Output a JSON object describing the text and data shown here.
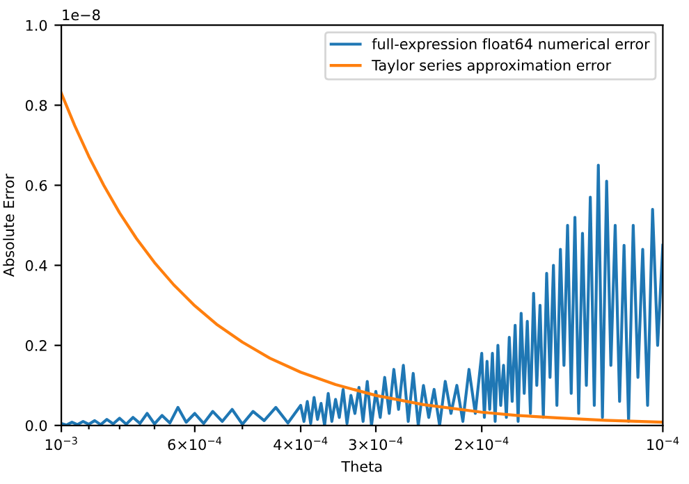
{
  "chart_data": {
    "type": "line",
    "xlabel": "Theta",
    "ylabel": "Absolute Error",
    "log": "x",
    "xlim": [
      0.001,
      0.0001
    ],
    "ylim": [
      0,
      1
    ],
    "xticks": [
      {
        "value": 0.001,
        "label": "10$^{−3}$"
      },
      {
        "value": 0.0009,
        "label": null
      },
      {
        "value": 0.0008,
        "label": null
      },
      {
        "value": 0.0007,
        "label": null
      },
      {
        "value": 0.0006,
        "label": "6×10$^{−4}$"
      },
      {
        "value": 0.0005,
        "label": null
      },
      {
        "value": 0.0004,
        "label": "4×10$^{−4}$"
      },
      {
        "value": 0.0003,
        "label": "3×10$^{−4}$"
      },
      {
        "value": 0.0002,
        "label": "2×10$^{−4}$"
      },
      {
        "value": 0.0001,
        "label": "10$^{−4}$"
      }
    ],
    "yticks": [
      {
        "value": 0,
        "label": "0.0"
      },
      {
        "value": 0.2,
        "label": "0.2"
      },
      {
        "value": 0.4,
        "label": "0.4"
      },
      {
        "value": 0.6,
        "label": "0.6"
      },
      {
        "value": 0.8,
        "label": "0.8"
      },
      {
        "value": 1,
        "label": "1.0"
      }
    ],
    "annotations": [
      "1e−8"
    ],
    "legend": "top right",
    "grid": false,
    "series": [
      {
        "name": "full-expression float64 numerical error",
        "color": "#1f77b4",
        "x": [
          0.001,
          0.00098,
          0.00096,
          0.00094,
          0.00092,
          0.0009,
          0.00088,
          0.00086,
          0.00084,
          0.00082,
          0.0008,
          0.00078,
          0.00076,
          0.00074,
          0.00072,
          0.0007,
          0.00068,
          0.00066,
          0.00064,
          0.00062,
          0.0006,
          0.00058,
          0.00056,
          0.00054,
          0.00052,
          0.0005,
          0.00048,
          0.00046,
          0.00044,
          0.00042,
          0.0004,
          0.000395,
          0.00039,
          0.000385,
          0.00038,
          0.000375,
          0.00037,
          0.000365,
          0.00036,
          0.000355,
          0.00035,
          0.000345,
          0.00034,
          0.000335,
          0.00033,
          0.000325,
          0.00032,
          0.000315,
          0.00031,
          0.000305,
          0.0003,
          0.000295,
          0.00029,
          0.000285,
          0.00028,
          0.000275,
          0.00027,
          0.000265,
          0.00026,
          0.000255,
          0.00025,
          0.000245,
          0.00024,
          0.000235,
          0.00023,
          0.000225,
          0.00022,
          0.000215,
          0.00021,
          0.000205,
          0.0002,
          0.000198,
          0.000196,
          0.000194,
          0.000192,
          0.00019,
          0.000188,
          0.000186,
          0.000184,
          0.000182,
          0.00018,
          0.000178,
          0.000176,
          0.000174,
          0.000172,
          0.00017,
          0.000168,
          0.000166,
          0.000164,
          0.000162,
          0.00016,
          0.000158,
          0.000156,
          0.000154,
          0.000152,
          0.00015,
          0.000148,
          0.000146,
          0.000144,
          0.000142,
          0.00014,
          0.000138,
          0.000136,
          0.000134,
          0.000132,
          0.00013,
          0.000128,
          0.000126,
          0.000124,
          0.000122,
          0.00012,
          0.000118,
          0.000116,
          0.000114,
          0.000112,
          0.00011,
          0.000108,
          0.000106,
          0.000104,
          0.000102,
          0.0001
        ],
        "values": [
          0.005,
          0.001,
          0.008,
          0.002,
          0.01,
          0.003,
          0.012,
          0.002,
          0.015,
          0.004,
          0.018,
          0.003,
          0.02,
          0.005,
          0.03,
          0.004,
          0.025,
          0.006,
          0.045,
          0.008,
          0.03,
          0.005,
          0.035,
          0.01,
          0.04,
          0.003,
          0.035,
          0.012,
          0.045,
          0.006,
          0.05,
          0.01,
          0.06,
          0.005,
          0.07,
          0.015,
          0.055,
          0.0,
          0.08,
          0.01,
          0.065,
          0.02,
          0.09,
          0.005,
          0.075,
          0.03,
          0.095,
          0.01,
          0.11,
          0.0,
          0.085,
          0.02,
          0.12,
          0.03,
          0.14,
          0.04,
          0.15,
          0.01,
          0.13,
          0.0,
          0.1,
          0.02,
          0.09,
          0.0,
          0.11,
          0.03,
          0.1,
          0.01,
          0.14,
          0.03,
          0.18,
          0.02,
          0.16,
          0.04,
          0.18,
          0.01,
          0.2,
          0.05,
          0.15,
          0.02,
          0.22,
          0.06,
          0.25,
          0.01,
          0.28,
          0.08,
          0.26,
          0.03,
          0.33,
          0.1,
          0.3,
          0.02,
          0.38,
          0.12,
          0.4,
          0.05,
          0.44,
          0.15,
          0.5,
          0.08,
          0.52,
          0.03,
          0.48,
          0.1,
          0.57,
          0.05,
          0.65,
          0.02,
          0.61,
          0.15,
          0.5,
          0.06,
          0.45,
          0.01,
          0.5,
          0.12,
          0.44,
          0.05,
          0.54,
          0.2,
          0.45
        ]
      },
      {
        "name": "Taylor series approximation error",
        "color": "#ff7f0e",
        "x": [
          0.001,
          0.00095,
          0.0009,
          0.00085,
          0.0008,
          0.00075,
          0.0007,
          0.00065,
          0.0006,
          0.00055,
          0.0005,
          0.00045,
          0.0004,
          0.00035,
          0.0003,
          0.00025,
          0.0002,
          0.000175,
          0.00015,
          0.000125,
          0.0001
        ],
        "values": [
          0.83,
          0.749,
          0.672,
          0.6,
          0.531,
          0.467,
          0.407,
          0.351,
          0.299,
          0.251,
          0.208,
          0.168,
          0.133,
          0.102,
          0.075,
          0.052,
          0.033,
          0.025,
          0.019,
          0.013,
          0.008
        ]
      }
    ]
  }
}
